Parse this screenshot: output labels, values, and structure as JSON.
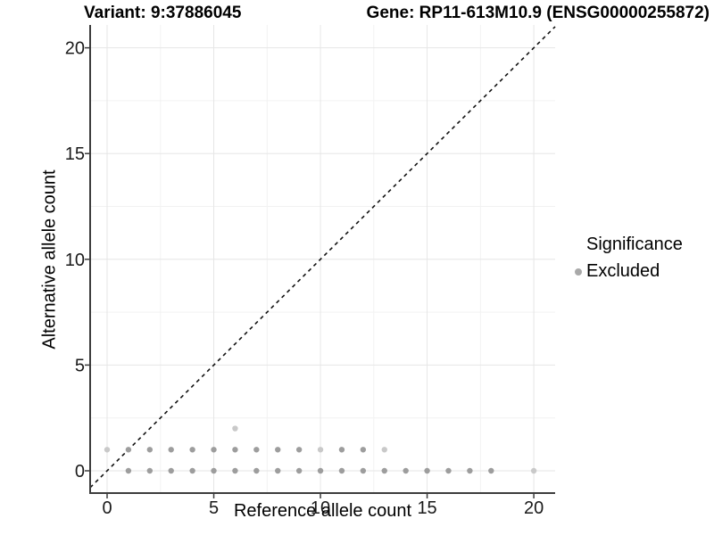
{
  "header": {
    "left_title": "Variant: 9:37886045",
    "right_title": "Gene: RP11-613M10.9 (ENSG00000255872)"
  },
  "chart_data": {
    "type": "scatter",
    "xlabel": "Reference allele count",
    "ylabel": "Alternative allele count",
    "xlim": [
      -0.795,
      21.0
    ],
    "ylim": [
      -1.054,
      21.08
    ],
    "x_ticks": [
      0,
      5,
      10,
      15,
      20
    ],
    "y_ticks": [
      0,
      5,
      10,
      15,
      20
    ],
    "x_minor_ticks": [
      2.5,
      7.5,
      12.5,
      17.5
    ],
    "y_minor_ticks": [
      2.5,
      7.5,
      12.5,
      17.5
    ],
    "grid": true,
    "identity_line": {
      "style": "dashed",
      "color": "#111111",
      "from": [
        -0.795,
        -0.795
      ],
      "to": [
        21.0,
        21.0
      ]
    },
    "legend": {
      "title": "Significance",
      "position": "right",
      "items": [
        {
          "label": "Excluded",
          "color": "#a9a9a9"
        }
      ]
    },
    "series": [
      {
        "name": "excluded",
        "color": "#9d9d9d",
        "points": [
          [
            1,
            0
          ],
          [
            2,
            0
          ],
          [
            3,
            0
          ],
          [
            4,
            0
          ],
          [
            5,
            0
          ],
          [
            6,
            0
          ],
          [
            7,
            0
          ],
          [
            8,
            0
          ],
          [
            9,
            0
          ],
          [
            10,
            0
          ],
          [
            11,
            0
          ],
          [
            12,
            0
          ],
          [
            13,
            0
          ],
          [
            14,
            0
          ],
          [
            15,
            0
          ],
          [
            16,
            0
          ],
          [
            17,
            0
          ],
          [
            18,
            0
          ],
          [
            1,
            1
          ],
          [
            2,
            1
          ],
          [
            3,
            1
          ],
          [
            4,
            1
          ],
          [
            5,
            1
          ],
          [
            6,
            1
          ],
          [
            7,
            1
          ],
          [
            8,
            1
          ],
          [
            9,
            1
          ],
          [
            11,
            1
          ],
          [
            12,
            1
          ]
        ]
      },
      {
        "name": "excluded-single",
        "color": "#c9c9c9",
        "points": [
          [
            0,
            1
          ],
          [
            10,
            1
          ],
          [
            13,
            1
          ],
          [
            6,
            2
          ],
          [
            20,
            0
          ]
        ]
      }
    ],
    "colors": {
      "grid_major": "#e6e6e6",
      "grid_minor": "#f2f2f2",
      "axis_line": "#3c3c3c",
      "tick_text": "#1a1a1a"
    }
  }
}
